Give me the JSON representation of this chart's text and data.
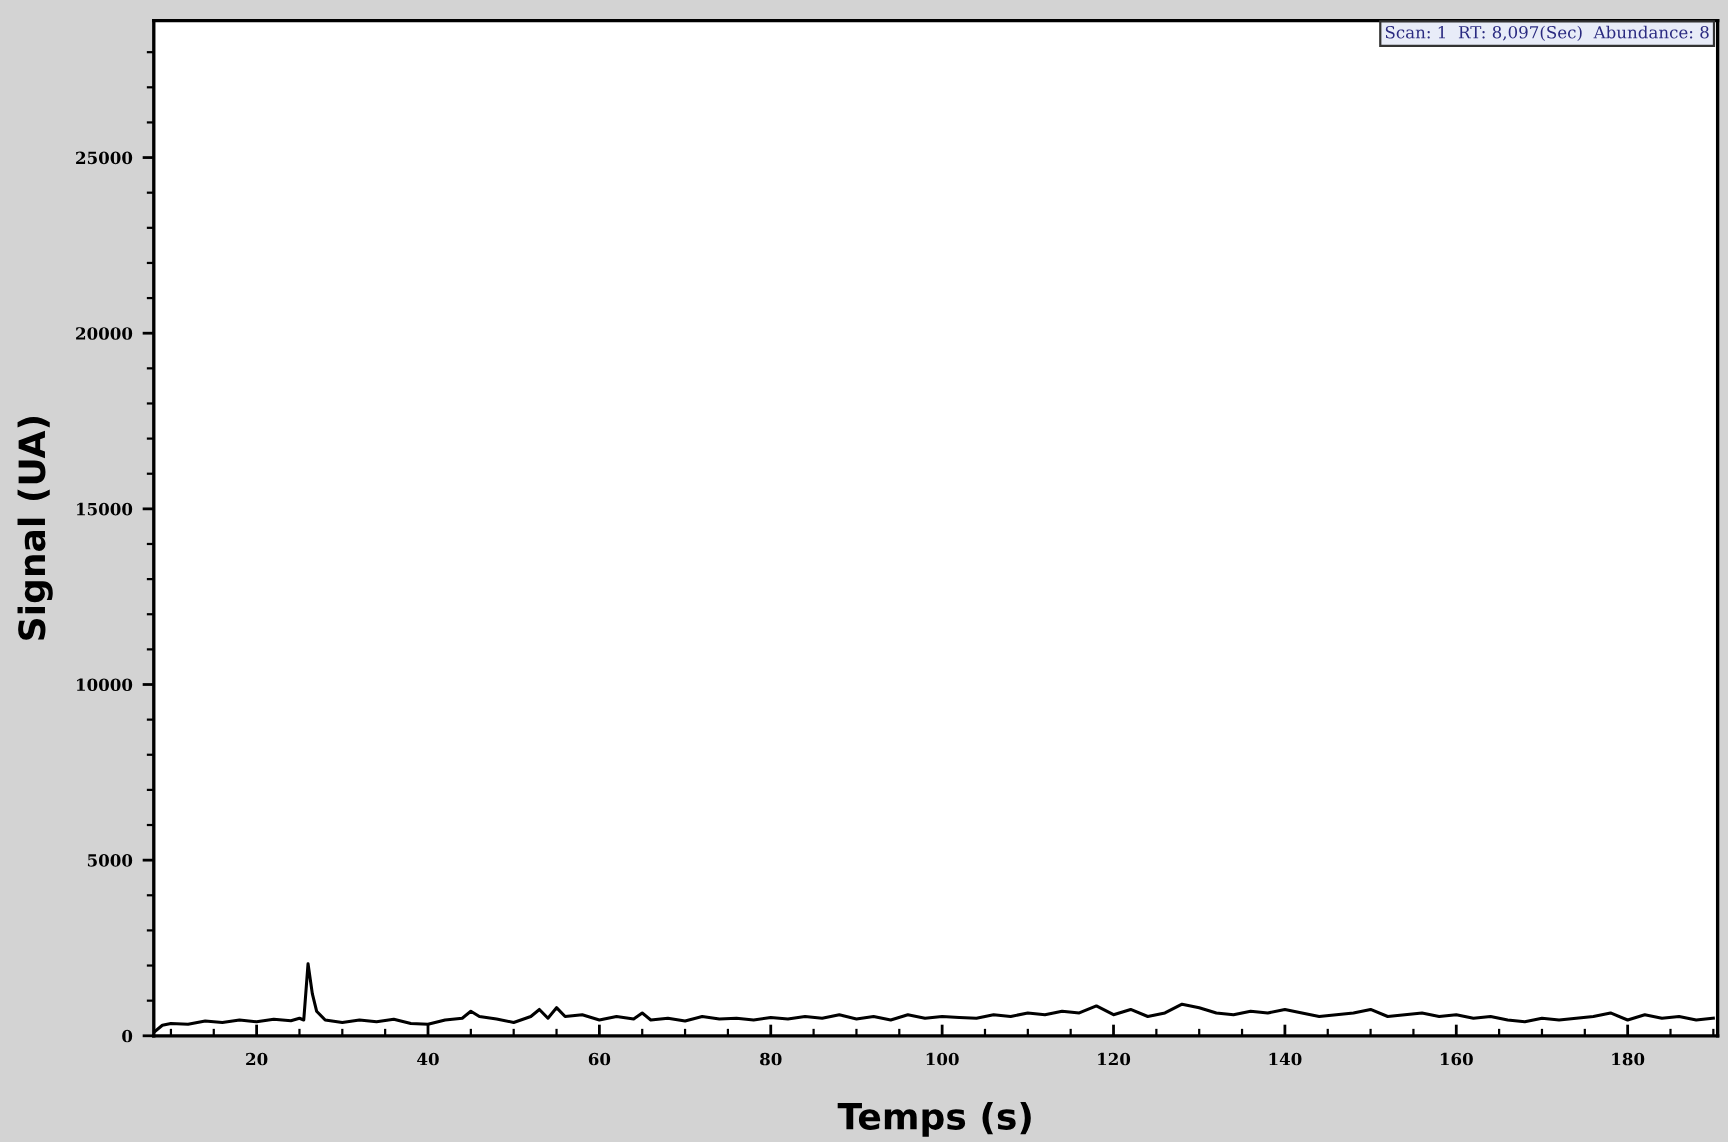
{
  "chart_data": {
    "type": "line",
    "xlabel": "Temps (s)",
    "ylabel": "Signal (UA)",
    "annotations": [
      "Scan: 1  RT: 8,097(Sec)  Abundance: 8"
    ],
    "x": [
      8,
      9,
      10,
      12,
      14,
      16,
      18,
      20,
      22,
      24,
      25,
      25.5,
      26,
      26.5,
      27,
      28,
      30,
      32,
      34,
      36,
      38,
      40,
      42,
      44,
      45,
      46,
      48,
      50,
      52,
      53,
      54,
      55,
      56,
      58,
      60,
      62,
      64,
      65,
      66,
      68,
      70,
      72,
      74,
      76,
      78,
      80,
      82,
      84,
      86,
      88,
      90,
      92,
      94,
      96,
      98,
      100,
      102,
      104,
      106,
      108,
      110,
      112,
      114,
      116,
      118,
      120,
      122,
      124,
      126,
      128,
      130,
      132,
      134,
      136,
      138,
      140,
      142,
      144,
      146,
      148,
      150,
      152,
      154,
      156,
      158,
      160,
      162,
      164,
      166,
      168,
      170,
      172,
      174,
      176,
      178,
      180,
      182,
      184,
      186,
      188,
      190
    ],
    "series": [
      {
        "color": "#000000",
        "values": [
          100,
          300,
          350,
          330,
          420,
          380,
          450,
          400,
          470,
          430,
          500,
          450,
          2050,
          1200,
          700,
          450,
          380,
          450,
          400,
          470,
          350,
          330,
          450,
          500,
          700,
          550,
          480,
          380,
          550,
          750,
          500,
          800,
          550,
          600,
          450,
          550,
          480,
          650,
          450,
          500,
          420,
          550,
          480,
          500,
          450,
          520,
          480,
          550,
          500,
          600,
          480,
          550,
          450,
          600,
          500,
          550,
          520,
          500,
          600,
          550,
          650,
          600,
          700,
          650,
          850,
          600,
          750,
          550,
          650,
          900,
          800,
          650,
          600,
          700,
          650,
          750,
          650,
          550,
          600,
          650,
          750,
          550,
          600,
          650,
          550,
          600,
          500,
          550,
          450,
          400,
          500,
          450,
          500,
          550,
          650,
          450,
          600,
          500,
          550,
          450,
          500
        ]
      }
    ],
    "xlim": [
      8,
      190.5
    ],
    "xticks": [
      20,
      40,
      60,
      80,
      100,
      120,
      140,
      160,
      180
    ],
    "ylim": [
      0,
      28900
    ],
    "yticks": [
      0,
      5000,
      10000,
      15000,
      20000,
      25000
    ],
    "grid": false,
    "marker": "none",
    "line_style": "solid"
  }
}
